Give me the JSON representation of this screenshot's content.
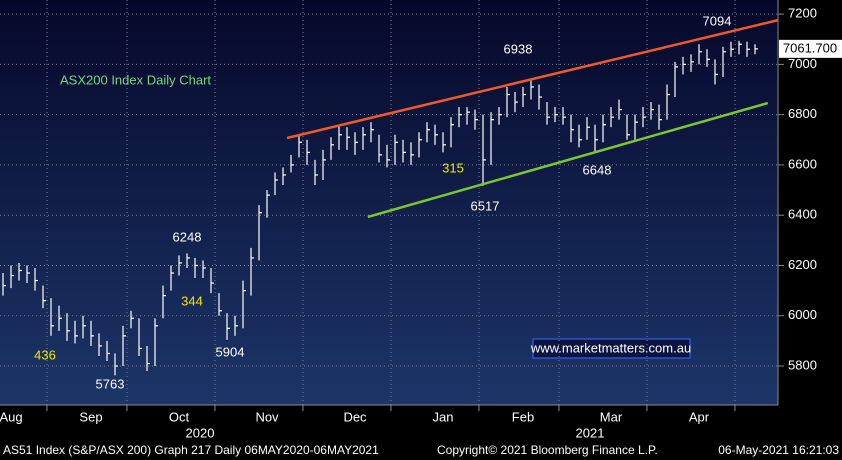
{
  "chart_data": {
    "type": "ohlc",
    "title": "ASX200 Index Daily Chart",
    "title_color": "#7cd67c",
    "footer": {
      "left": "AS51 Index (S&P/ASX 200) Graph 217  Daily 06MAY2020-06MAY2021",
      "center": "Copyright© 2021 Bloomberg Finance L.P.",
      "right": "06-May-2021 16:21:03"
    },
    "watermark": "www.marketmatters.com.au",
    "years": [
      "2020",
      "2021"
    ],
    "categories": [
      null,
      "Aug",
      null,
      null,
      null,
      null,
      null,
      null,
      null,
      null,
      null,
      "Sep",
      null,
      null,
      null,
      null,
      null,
      null,
      null,
      null,
      null,
      null,
      "Oct",
      null,
      null,
      null,
      null,
      null,
      null,
      null,
      null,
      null,
      null,
      "Nov",
      null,
      null,
      null,
      null,
      null,
      null,
      null,
      null,
      null,
      null,
      "Dec",
      null,
      null,
      null,
      null,
      null,
      null,
      null,
      null,
      null,
      null,
      "Jan",
      null,
      null,
      null,
      null,
      null,
      null,
      null,
      null,
      null,
      "Feb",
      null,
      null,
      null,
      null,
      null,
      null,
      null,
      null,
      null,
      null,
      "Mar",
      null,
      null,
      null,
      null,
      null,
      null,
      null,
      null,
      null,
      null,
      "Apr",
      null,
      null,
      null,
      null,
      null,
      null,
      null
    ],
    "high": [
      6170,
      6200,
      6210,
      6200,
      6190,
      6120,
      6070,
      6040,
      6010,
      5980,
      6000,
      5980,
      5930,
      5900,
      5850,
      5960,
      6020,
      5990,
      5880,
      5990,
      6120,
      6200,
      6240,
      6248,
      6230,
      6220,
      6190,
      6090,
      6010,
      6000,
      6140,
      6270,
      6440,
      6500,
      6570,
      6590,
      6640,
      6720,
      6700,
      6620,
      6660,
      6710,
      6760,
      6750,
      6730,
      6750,
      6770,
      6720,
      6680,
      6720,
      6700,
      6690,
      6730,
      6770,
      6760,
      6730,
      6790,
      6830,
      6830,
      6820,
      6800,
      6810,
      6830,
      6910,
      6890,
      6910,
      6938,
      6920,
      6850,
      6830,
      6830,
      6800,
      6760,
      6790,
      6760,
      6800,
      6830,
      6860,
      6800,
      6800,
      6830,
      6850,
      6840,
      6920,
      7010,
      7030,
      7040,
      7080,
      7060,
      7020,
      7070,
      7090,
      7094,
      7090,
      7080
    ],
    "low": [
      6080,
      6110,
      6140,
      6130,
      6100,
      6030,
      5920,
      5940,
      5900,
      5890,
      5910,
      5880,
      5840,
      5820,
      5763,
      5800,
      5950,
      5840,
      5780,
      5800,
      5990,
      6100,
      6160,
      6190,
      6150,
      6150,
      6090,
      6000,
      5904,
      5920,
      5950,
      6080,
      6220,
      6390,
      6480,
      6520,
      6570,
      6630,
      6600,
      6520,
      6540,
      6620,
      6660,
      6660,
      6640,
      6660,
      6690,
      6610,
      6590,
      6600,
      6610,
      6600,
      6630,
      6690,
      6680,
      6650,
      6670,
      6750,
      6760,
      6740,
      6517,
      6600,
      6760,
      6790,
      6810,
      6830,
      6860,
      6820,
      6760,
      6770,
      6760,
      6690,
      6670,
      6700,
      6648,
      6690,
      6750,
      6780,
      6700,
      6700,
      6750,
      6780,
      6740,
      6780,
      6870,
      6960,
      6970,
      7000,
      6990,
      6920,
      6950,
      7030,
      7040,
      7030,
      7040
    ],
    "close": [
      6120,
      6160,
      6180,
      6170,
      6140,
      6060,
      5960,
      5990,
      5940,
      5920,
      5960,
      5920,
      5880,
      5850,
      5800,
      5920,
      5990,
      5870,
      5810,
      5960,
      6080,
      6170,
      6210,
      6230,
      6200,
      6190,
      6130,
      6020,
      5950,
      5960,
      6100,
      6230,
      6410,
      6480,
      6540,
      6560,
      6600,
      6690,
      6650,
      6560,
      6620,
      6680,
      6720,
      6710,
      6690,
      6720,
      6740,
      6640,
      6620,
      6690,
      6650,
      6640,
      6700,
      6740,
      6720,
      6680,
      6760,
      6800,
      6810,
      6780,
      6620,
      6780,
      6800,
      6880,
      6850,
      6880,
      6910,
      6870,
      6790,
      6800,
      6790,
      6740,
      6700,
      6750,
      6700,
      6760,
      6790,
      6820,
      6720,
      6770,
      6790,
      6820,
      6780,
      6880,
      6990,
      7000,
      7010,
      7050,
      7020,
      6960,
      7050,
      7060,
      7080,
      7060,
      7061.7
    ],
    "color": "#ffffff",
    "last": {
      "value": 7061.7,
      "label": "7061.700"
    },
    "ylim": [
      5645,
      7256
    ],
    "yticks": [
      5800,
      6000,
      6200,
      6400,
      6600,
      6800,
      7000,
      7200
    ],
    "grid": true,
    "trendlines": [
      {
        "color": "#f05a28",
        "start": [
          35.5,
          6707
        ],
        "end": [
          96.9,
          7176
        ]
      },
      {
        "color": "#7dc62e",
        "start": [
          45.6,
          6393
        ],
        "end": [
          95.6,
          6846
        ]
      }
    ],
    "annotations": [
      {
        "text": "7094",
        "color": "#ffffff"
      },
      {
        "text": "6938",
        "color": "#ffffff"
      },
      {
        "text": "6248",
        "color": "#ffffff"
      },
      {
        "text": "5763",
        "color": "#ffffff"
      },
      {
        "text": "5904",
        "color": "#ffffff"
      },
      {
        "text": "6517",
        "color": "#ffffff"
      },
      {
        "text": "6648",
        "color": "#ffffff"
      },
      {
        "text": "436",
        "color": "#f2e600"
      },
      {
        "text": "344",
        "color": "#f2e600"
      },
      {
        "text": "315",
        "color": "#f2e600"
      }
    ]
  }
}
